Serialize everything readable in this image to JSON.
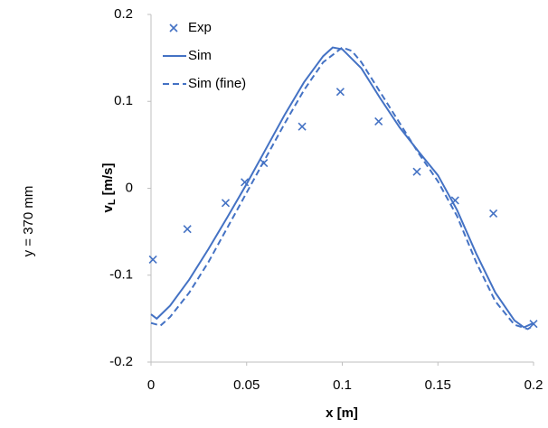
{
  "side_label": "y = 370 mm",
  "chart_data": {
    "type": "line",
    "xlabel": "x [m]",
    "ylabel": [
      "v",
      "L",
      "[m/s]"
    ],
    "xlim": [
      0,
      0.2
    ],
    "xticks": [
      0,
      0.05,
      0.1,
      0.15,
      0.2
    ],
    "ylim": [
      -0.2,
      0.2
    ],
    "yticks": [
      -0.2,
      -0.1,
      0,
      0.1,
      0.2
    ],
    "grid": false,
    "legend": "top-left",
    "series": [
      {
        "name": "Exp",
        "color": "#4472c4",
        "marker": "x",
        "line": "none",
        "x": [
          0.001,
          0.019,
          0.039,
          0.049,
          0.059,
          0.079,
          0.099,
          0.119,
          0.139,
          0.159,
          0.179,
          0.2
        ],
        "values": [
          -0.082,
          -0.047,
          -0.017,
          0.007,
          0.029,
          0.071,
          0.111,
          0.077,
          0.019,
          -0.014,
          -0.029,
          -0.156
        ]
      },
      {
        "name": "Sim",
        "color": "#4472c4",
        "marker": "none",
        "line": "solid",
        "x": [
          0,
          0.003,
          0.01,
          0.02,
          0.03,
          0.04,
          0.05,
          0.06,
          0.07,
          0.08,
          0.09,
          0.095,
          0.1,
          0.11,
          0.12,
          0.13,
          0.14,
          0.15,
          0.16,
          0.17,
          0.18,
          0.19,
          0.195,
          0.2
        ],
        "values": [
          -0.145,
          -0.15,
          -0.135,
          -0.105,
          -0.07,
          -0.033,
          0.005,
          0.045,
          0.085,
          0.122,
          0.152,
          0.162,
          0.16,
          0.138,
          0.103,
          0.07,
          0.042,
          0.015,
          -0.025,
          -0.075,
          -0.12,
          -0.152,
          -0.16,
          -0.155
        ]
      },
      {
        "name": "Sim (fine)",
        "color": "#4472c4",
        "marker": "none",
        "line": "dashed",
        "x": [
          0,
          0.005,
          0.01,
          0.02,
          0.03,
          0.04,
          0.05,
          0.06,
          0.07,
          0.08,
          0.09,
          0.1,
          0.105,
          0.11,
          0.12,
          0.13,
          0.14,
          0.15,
          0.16,
          0.17,
          0.18,
          0.19,
          0.197,
          0.2
        ],
        "values": [
          -0.155,
          -0.158,
          -0.148,
          -0.12,
          -0.085,
          -0.045,
          -0.005,
          0.035,
          0.075,
          0.113,
          0.145,
          0.162,
          0.158,
          0.145,
          0.11,
          0.075,
          0.04,
          0.008,
          -0.032,
          -0.085,
          -0.13,
          -0.157,
          -0.162,
          -0.158
        ]
      }
    ]
  }
}
